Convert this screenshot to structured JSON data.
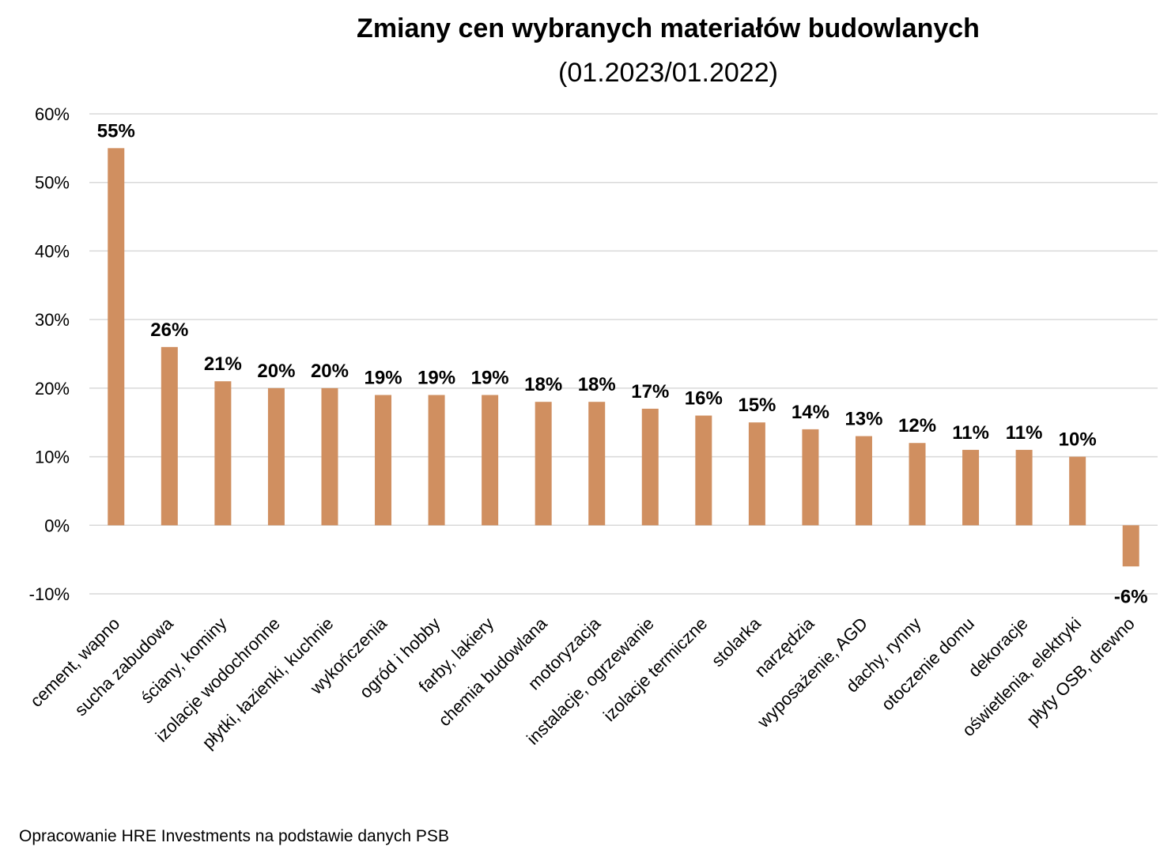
{
  "chart_data": {
    "type": "bar",
    "title": "Zmiany cen wybranych materiałów budowlanych",
    "subtitle": "(01.2023/01.2022)",
    "xlabel": "",
    "ylabel": "",
    "ylim": [
      -0.1,
      0.6
    ],
    "yticks": [
      {
        "value": 0.6,
        "label": "60%"
      },
      {
        "value": 0.5,
        "label": "50%"
      },
      {
        "value": 0.4,
        "label": "40%"
      },
      {
        "value": 0.3,
        "label": "30%"
      },
      {
        "value": 0.2,
        "label": "20%"
      },
      {
        "value": 0.1,
        "label": "10%"
      },
      {
        "value": 0.0,
        "label": "0%"
      },
      {
        "value": -0.1,
        "label": "-10%"
      }
    ],
    "grid": true,
    "legend": "none",
    "categories": [
      "cement, wapno",
      "sucha zabudowa",
      "ściany, kominy",
      "izolacje wodochronne",
      "płytki, łazienki, kuchnie",
      "wykończenia",
      "ogród i hobby",
      "farby, lakiery",
      "chemia budowlana",
      "motoryzacja",
      "instalacje, ogrzewanie",
      "izolacje termiczne",
      "stolarka",
      "narzędzia",
      "wyposażenie, AGD",
      "dachy, rynny",
      "otoczenie domu",
      "dekoracje",
      "oświetlenia, elektryki",
      "płyty OSB, drewno"
    ],
    "values": [
      0.55,
      0.26,
      0.21,
      0.2,
      0.2,
      0.19,
      0.19,
      0.19,
      0.18,
      0.18,
      0.17,
      0.16,
      0.15,
      0.14,
      0.13,
      0.12,
      0.11,
      0.11,
      0.1,
      -0.06
    ],
    "data_labels": [
      "55%",
      "26%",
      "21%",
      "20%",
      "20%",
      "19%",
      "19%",
      "19%",
      "18%",
      "18%",
      "17%",
      "16%",
      "15%",
      "14%",
      "13%",
      "12%",
      "11%",
      "11%",
      "10%",
      "-6%"
    ],
    "colors": {
      "bar": "#d08f60",
      "grid": "#d9d9d9"
    }
  },
  "source_note": "Opracowanie HRE Investments na podstawie danych PSB"
}
